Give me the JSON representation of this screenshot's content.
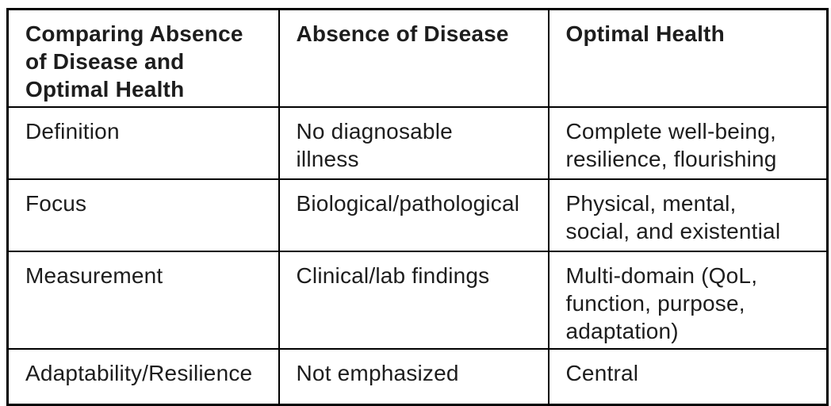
{
  "table": {
    "header": [
      "Comparing Absence\nof Disease and\nOptimal Health",
      "Absence of Disease",
      "Optimal Health"
    ],
    "rows": [
      {
        "cells": [
          "Definition",
          "No diagnosable\nillness",
          "Complete well-being,\nresilience, flourishing"
        ]
      },
      {
        "cells": [
          "Focus",
          "Biological/pathological",
          "Physical, mental,\nsocial, and existential"
        ]
      },
      {
        "cells": [
          "Measurement",
          "Clinical/lab findings",
          "Multi-domain (QoL,\nfunction, purpose,\nadaptation)"
        ]
      },
      {
        "cells": [
          "Adaptability/Resilience",
          "Not emphasized",
          "Central"
        ]
      }
    ],
    "colors": {
      "border": "#000000",
      "text": "#1d1d1d",
      "background": "#ffffff"
    }
  },
  "chart_data": {
    "type": "table",
    "title": "Comparing Absence of Disease and Optimal Health",
    "columns": [
      "Comparing Absence of Disease and Optimal Health",
      "Absence of Disease",
      "Optimal Health"
    ],
    "rows": [
      [
        "Definition",
        "No diagnosable illness",
        "Complete well-being, resilience, flourishing"
      ],
      [
        "Focus",
        "Biological/pathological",
        "Physical, mental, social, and existential"
      ],
      [
        "Measurement",
        "Clinical/lab findings",
        "Multi-domain (QoL, function, purpose, adaptation)"
      ],
      [
        "Adaptability/Resilience",
        "Not emphasized",
        "Central"
      ]
    ],
    "layout": {
      "grid": "full-borders",
      "header_style": "bold",
      "legend_position": "none"
    }
  }
}
